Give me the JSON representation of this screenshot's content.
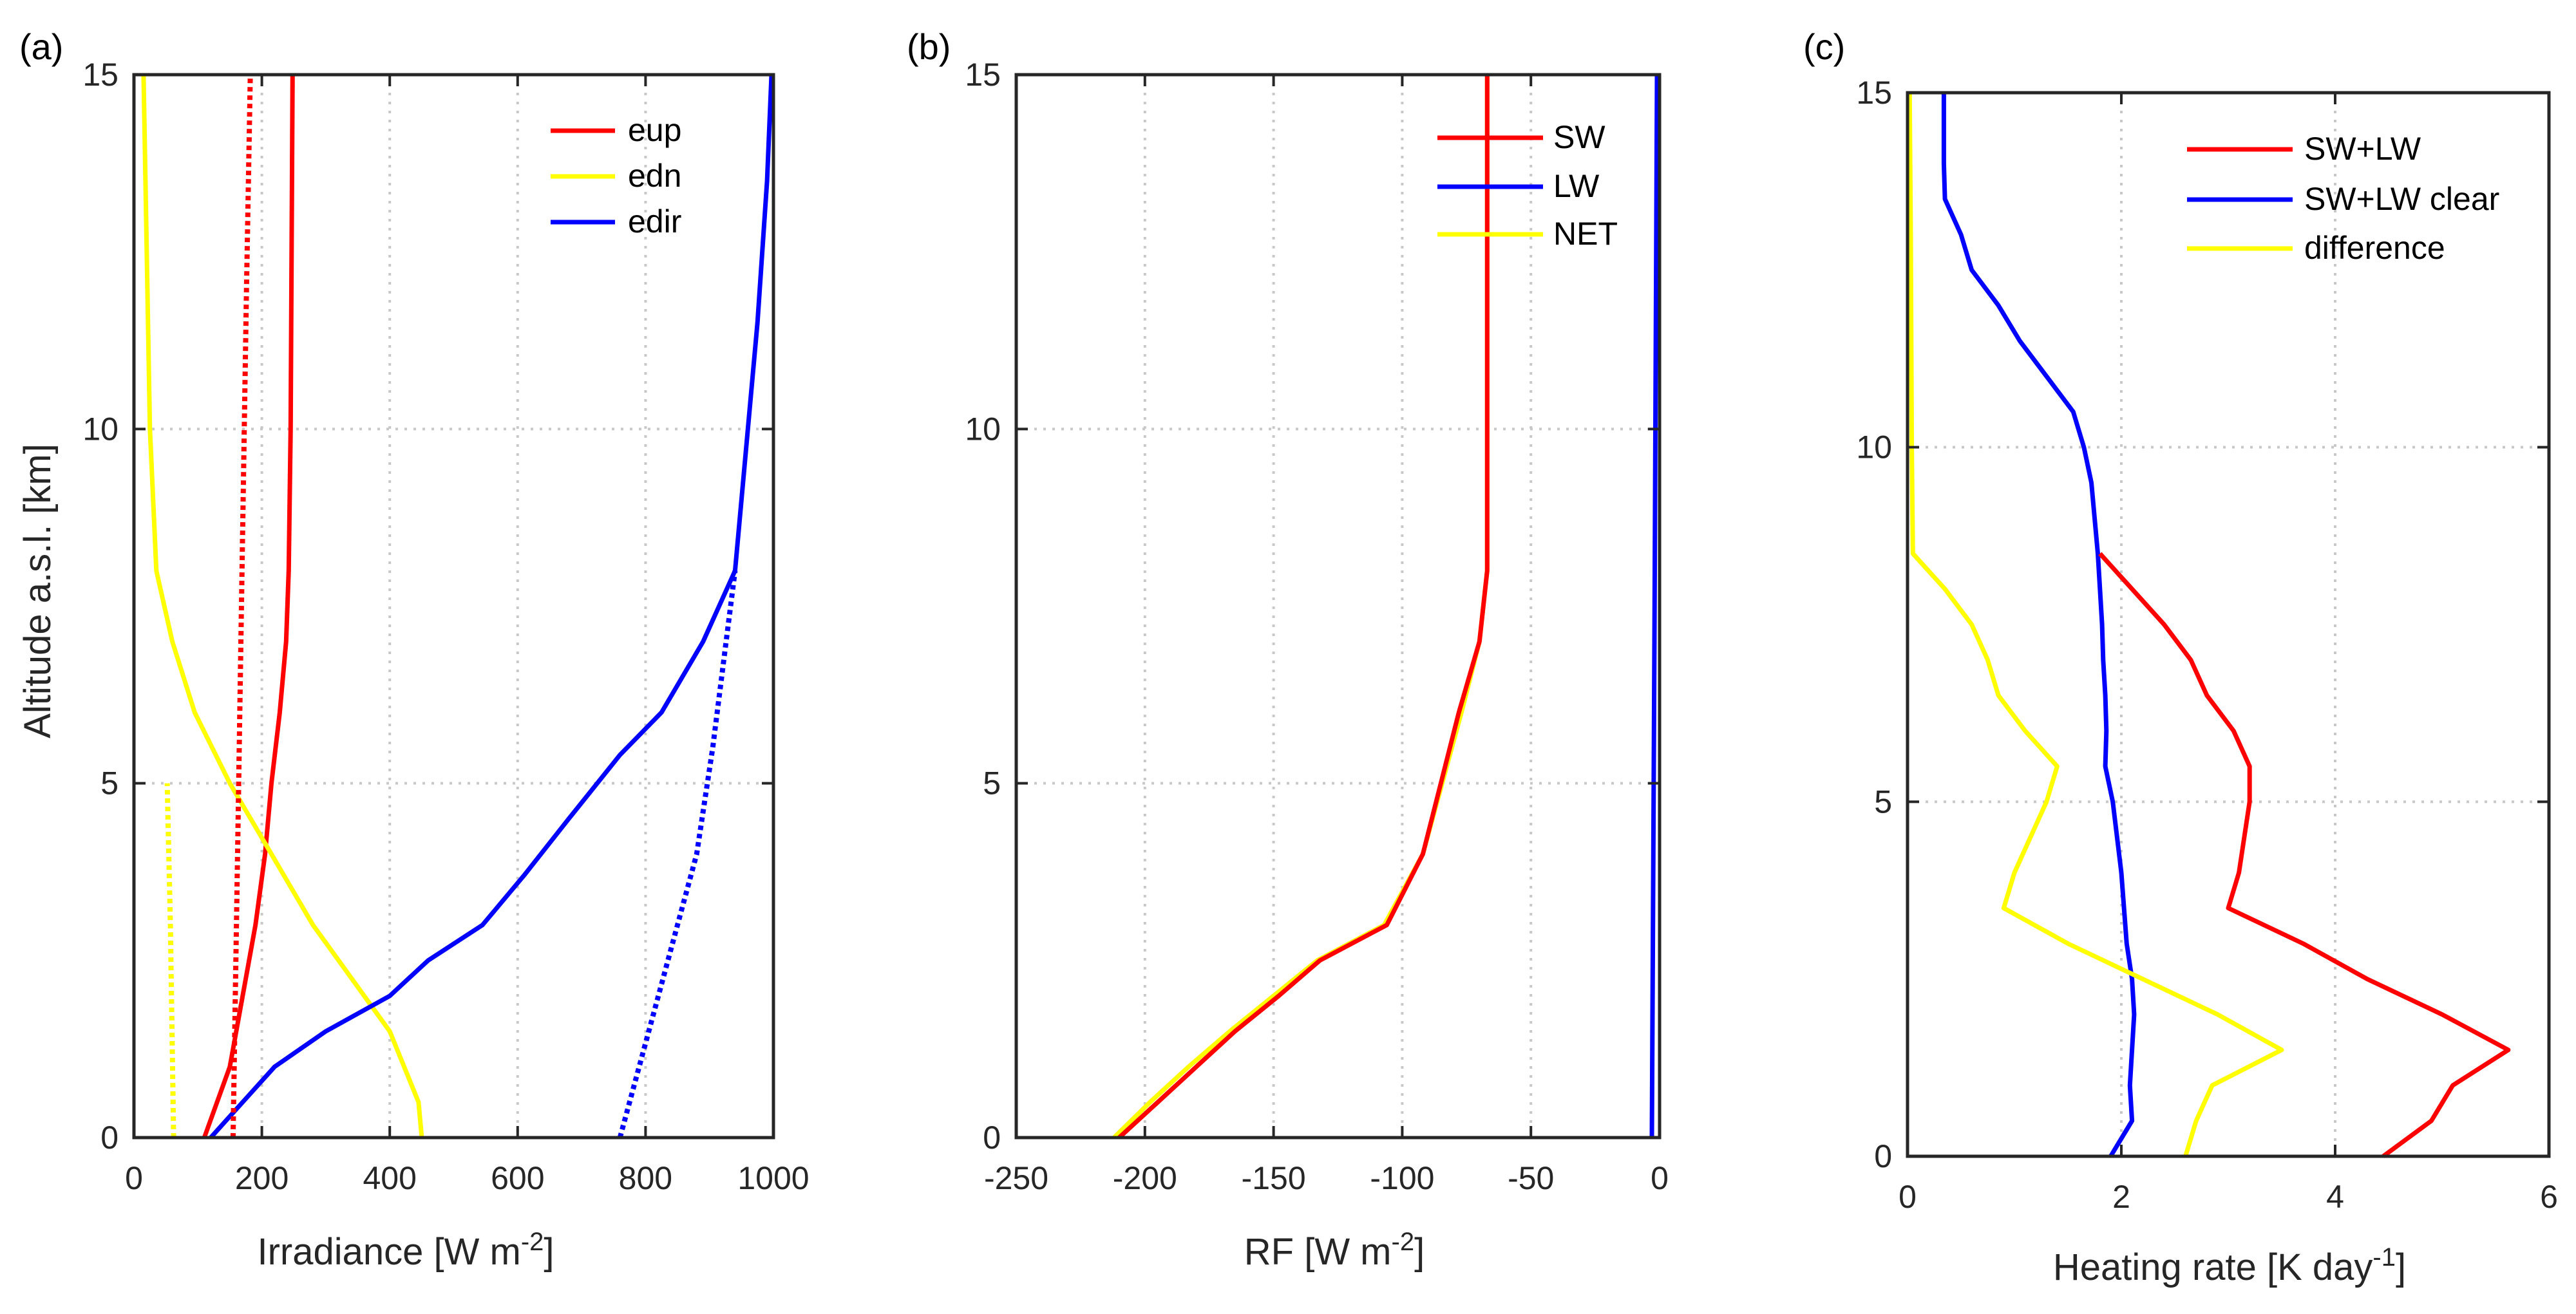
{
  "colors": {
    "red": "#ff0000",
    "yellow": "#ffff00",
    "blue": "#0000ff",
    "axis": "#262626",
    "grid": "#c8c8c8"
  },
  "chart_data": [
    {
      "panel": "(a)",
      "type": "line",
      "xlabel": "Irradiance [W m",
      "xlabel_sup": "-2",
      "xlabel_end": "]",
      "ylabel": "Altitude a.s.l. [km]",
      "xlim": [
        0,
        1000
      ],
      "ylim": [
        0,
        15
      ],
      "xticks": [
        0,
        200,
        400,
        600,
        800,
        1000
      ],
      "xtick_labels": [
        "0",
        "200",
        "400",
        "600",
        "800",
        "1000"
      ],
      "yticks": [
        0,
        5,
        10,
        15
      ],
      "ytick_labels": [
        "0",
        "5",
        "10",
        "15"
      ],
      "grid": true,
      "legend_position": "top-right",
      "legend": [
        {
          "label": "eup",
          "color": "#ff0000"
        },
        {
          "label": "edn",
          "color": "#ffff00"
        },
        {
          "label": "edir",
          "color": "#0000ff"
        }
      ],
      "series": [
        {
          "name": "eup",
          "color": "#ff0000",
          "style": "solid",
          "x": [
            110,
            150,
            170,
            190,
            205,
            215,
            228,
            238,
            242,
            245,
            248
          ],
          "y": [
            0,
            1,
            2,
            3,
            4,
            5,
            6,
            7,
            8,
            10,
            15
          ]
        },
        {
          "name": "edn",
          "color": "#ffff00",
          "style": "solid",
          "x": [
            450,
            445,
            400,
            320,
            280,
            215,
            150,
            95,
            60,
            35,
            25,
            15
          ],
          "y": [
            0,
            0.5,
            1.5,
            2.5,
            3,
            4,
            5,
            6,
            7,
            8,
            10,
            15
          ]
        },
        {
          "name": "edir",
          "color": "#0000ff",
          "style": "solid",
          "x": [
            120,
            150,
            220,
            300,
            400,
            460,
            545,
            610,
            680,
            760,
            825,
            890,
            940,
            960,
            975,
            990,
            997
          ],
          "y": [
            0,
            0.3,
            1,
            1.5,
            2,
            2.5,
            3,
            3.7,
            4.5,
            5.4,
            6,
            7,
            8,
            10,
            11.5,
            13.5,
            15
          ]
        },
        {
          "name": "eup-dotted",
          "color": "#ff0000",
          "style": "dotted",
          "x": [
            155,
            162,
            169,
            176,
            182
          ],
          "y": [
            0,
            4,
            8,
            12,
            15
          ]
        },
        {
          "name": "edn-dotted",
          "color": "#ffff00",
          "style": "dotted",
          "x": [
            62,
            57,
            52
          ],
          "y": [
            0,
            3,
            5
          ]
        },
        {
          "name": "edir-dotted",
          "color": "#0000ff",
          "style": "dotted",
          "x": [
            760,
            790,
            820,
            850,
            880,
            905,
            940
          ],
          "y": [
            0,
            1,
            2,
            3,
            4,
            5.5,
            8
          ]
        }
      ]
    },
    {
      "panel": "(b)",
      "type": "line",
      "xlabel": "RF [W m",
      "xlabel_sup": "-2",
      "xlabel_end": "]",
      "ylabel": "",
      "xlim": [
        -250,
        0
      ],
      "ylim": [
        0,
        15
      ],
      "xticks": [
        -250,
        -200,
        -150,
        -100,
        -50,
        0
      ],
      "xtick_labels": [
        "-250",
        "-200",
        "-150",
        "-100",
        "-50",
        "0"
      ],
      "yticks": [
        0,
        5,
        10,
        15
      ],
      "ytick_labels": [
        "0",
        "5",
        "10",
        "15"
      ],
      "grid": true,
      "legend_position": "top-right",
      "legend": [
        {
          "label": "SW",
          "color": "#ff0000"
        },
        {
          "label": "LW",
          "color": "#0000ff"
        },
        {
          "label": "NET",
          "color": "#ffff00"
        }
      ],
      "series": [
        {
          "name": "NET",
          "color": "#ffff00",
          "style": "solid",
          "x": [
            -212,
            -198,
            -183,
            -167,
            -150,
            -133,
            -107,
            -92,
            -77,
            -70,
            -67,
            -67,
            -67
          ],
          "y": [
            0,
            0.5,
            1,
            1.5,
            2,
            2.5,
            3,
            4,
            6,
            7,
            8,
            10,
            15
          ]
        },
        {
          "name": "SW",
          "color": "#ff0000",
          "style": "solid",
          "x": [
            -210,
            -195,
            -180,
            -165,
            -148,
            -132,
            -106,
            -92,
            -78,
            -70,
            -67,
            -67,
            -67
          ],
          "y": [
            0,
            0.5,
            1,
            1.5,
            2,
            2.5,
            3,
            4,
            6,
            7,
            8,
            10,
            15
          ]
        },
        {
          "name": "LW",
          "color": "#0000ff",
          "style": "solid",
          "x": [
            -3,
            -2,
            -1
          ],
          "y": [
            0,
            7,
            15
          ]
        }
      ]
    },
    {
      "panel": "(c)",
      "type": "line",
      "xlabel": "Heating rate [K day",
      "xlabel_sup": "-1",
      "xlabel_end": "]",
      "ylabel": "",
      "xlim": [
        0,
        6
      ],
      "ylim": [
        0,
        15
      ],
      "xticks": [
        0,
        2,
        4,
        6
      ],
      "xtick_labels": [
        "0",
        "2",
        "4",
        "6"
      ],
      "yticks": [
        0,
        5,
        10,
        15
      ],
      "ytick_labels": [
        "0",
        "5",
        "10",
        "15"
      ],
      "grid": true,
      "legend_position": "top-right",
      "legend": [
        {
          "label": "SW+LW",
          "color": "#ff0000"
        },
        {
          "label": "SW+LW clear",
          "color": "#0000ff"
        },
        {
          "label": "difference",
          "color": "#ffff00"
        }
      ],
      "series": [
        {
          "name": "SW+LW clear",
          "color": "#0000ff",
          "style": "solid",
          "x": [
            1.9,
            2.1,
            2.08,
            2.1,
            2.12,
            2.1,
            2.05,
            2.0,
            1.92,
            1.85,
            1.86,
            1.85,
            1.83,
            1.82,
            1.8,
            1.78,
            1.75,
            1.72,
            1.65,
            1.55,
            1.3,
            1.05,
            0.85,
            0.6,
            0.5,
            0.35,
            0.34,
            0.34
          ],
          "y": [
            0,
            0.5,
            1,
            1.5,
            2,
            2.5,
            3,
            4,
            5,
            5.5,
            6,
            6.5,
            7,
            7.5,
            8,
            8.5,
            9,
            9.5,
            10,
            10.5,
            11,
            11.5,
            12,
            12.5,
            13,
            13.5,
            14,
            15
          ]
        },
        {
          "name": "SW+LW",
          "color": "#ff0000",
          "style": "solid",
          "x": [
            4.45,
            4.9,
            5.1,
            5.62,
            5.0,
            4.3,
            3.7,
            3.0,
            3.1,
            3.15,
            3.2,
            3.2,
            3.05,
            2.8,
            2.65,
            2.4,
            2.1,
            1.8
          ],
          "y": [
            0,
            0.5,
            1,
            1.5,
            2,
            2.5,
            3,
            3.5,
            4,
            4.5,
            5,
            5.5,
            6,
            6.5,
            7,
            7.5,
            8,
            8.5
          ]
        },
        {
          "name": "difference",
          "color": "#ffff00",
          "style": "solid",
          "x": [
            2.6,
            2.7,
            2.85,
            3.5,
            2.9,
            2.2,
            1.5,
            0.9,
            1.0,
            1.15,
            1.3,
            1.4,
            1.1,
            0.85,
            0.75,
            0.6,
            0.35,
            0.05,
            0.04,
            0.03,
            0.02
          ],
          "y": [
            0,
            0.5,
            1,
            1.5,
            2,
            2.5,
            3,
            3.5,
            4,
            4.5,
            5,
            5.5,
            6,
            6.5,
            7,
            7.5,
            8,
            8.5,
            10,
            13,
            15
          ]
        }
      ]
    }
  ]
}
